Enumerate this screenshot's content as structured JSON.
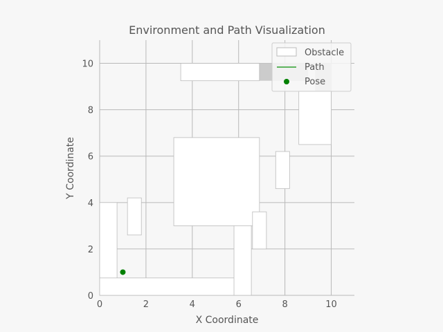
{
  "chart_data": {
    "type": "scatter",
    "title": "Environment and Path Visualization",
    "xlabel": "X Coordinate",
    "ylabel": "Y Coordinate",
    "xlim": [
      0,
      11
    ],
    "ylim": [
      0,
      11
    ],
    "xticks": [
      0,
      2,
      4,
      6,
      8,
      10
    ],
    "yticks": [
      0,
      2,
      4,
      6,
      8,
      10
    ],
    "xtick_labels": [
      "0",
      "2",
      "4",
      "6",
      "8",
      "10"
    ],
    "ytick_labels": [
      "0",
      "2",
      "4",
      "6",
      "8",
      "10"
    ],
    "grid": true,
    "legend_position": "top-right",
    "legend": [
      "Obstacle",
      "Path",
      "Pose"
    ],
    "colors": {
      "obstacle_fill": "#ffffff",
      "obstacle_edge": "#bbbbbb",
      "path": "#2ca02c",
      "pose": "#008000",
      "grid": "#b8b8b8",
      "axes_bg": "#f7f7f7",
      "dark_region": "#cccccc"
    },
    "obstacles": [
      {
        "x": 3.5,
        "y": 9.25,
        "width": 3.4,
        "height": 0.75
      },
      {
        "x": 8.6,
        "y": 6.5,
        "width": 1.4,
        "height": 2.3
      },
      {
        "x": 7.6,
        "y": 4.6,
        "width": 0.6,
        "height": 1.6
      },
      {
        "x": 1.2,
        "y": 2.6,
        "width": 0.6,
        "height": 1.6
      },
      {
        "x": 3.2,
        "y": 3.0,
        "width": 3.7,
        "height": 3.8
      },
      {
        "x": 6.6,
        "y": 2.0,
        "width": 0.6,
        "height": 1.6
      },
      {
        "x": 0.0,
        "y": 0.0,
        "width": 0.75,
        "height": 4.0
      },
      {
        "x": 0.0,
        "y": 0.0,
        "width": 6.5,
        "height": 0.75
      },
      {
        "x": 5.8,
        "y": 0.0,
        "width": 0.75,
        "height": 3.0
      }
    ],
    "dark_regions": [
      {
        "x": 6.9,
        "y": 9.25,
        "width": 2.1,
        "height": 0.75
      },
      {
        "x": 9.3,
        "y": 8.8,
        "width": 0.7,
        "height": 1.2
      }
    ],
    "path": [],
    "pose": [
      {
        "x": 1.0,
        "y": 1.0
      }
    ]
  }
}
